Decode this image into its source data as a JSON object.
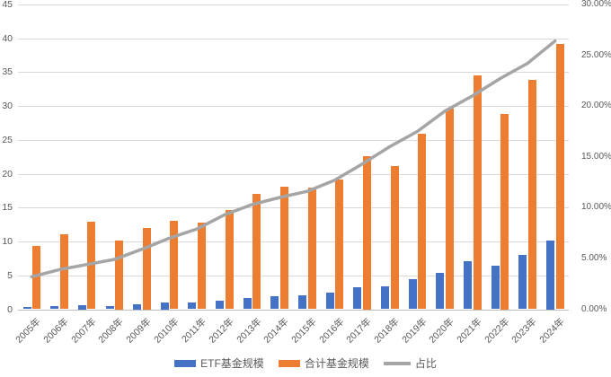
{
  "chart_data": {
    "type": "combo_bar_line",
    "title": "",
    "categories": [
      "2005年",
      "2006年",
      "2007年",
      "2008年",
      "2009年",
      "2010年",
      "2011年",
      "2012年",
      "2013年",
      "2014年",
      "2015年",
      "2016年",
      "2017年",
      "2018年",
      "2019年",
      "2020年",
      "2021年",
      "2022年",
      "2023年",
      "2024年"
    ],
    "series": [
      {
        "name": "ETF基金规模",
        "type": "bar",
        "axis": "left",
        "color": "#4472C4",
        "values": [
          0.3,
          0.45,
          0.6,
          0.5,
          0.8,
          1.0,
          1.05,
          1.3,
          1.7,
          1.9,
          2.1,
          2.5,
          3.3,
          3.4,
          4.4,
          5.4,
          7.1,
          6.4,
          8.0,
          10.2
        ]
      },
      {
        "name": "合计基金规模",
        "type": "bar",
        "axis": "left",
        "color": "#ED7D31",
        "values": [
          9.4,
          11.1,
          12.9,
          10.2,
          12.0,
          13.1,
          12.8,
          14.7,
          17.0,
          18.1,
          18.0,
          19.2,
          22.6,
          21.2,
          25.9,
          29.6,
          34.6,
          28.9,
          33.9,
          39.2
        ]
      },
      {
        "name": "占比",
        "type": "line",
        "axis": "right",
        "color": "#A5A5A5",
        "values": [
          3.2,
          3.9,
          4.4,
          4.9,
          5.9,
          7.0,
          7.9,
          9.3,
          10.3,
          11.0,
          11.6,
          12.7,
          14.3,
          16.0,
          17.5,
          19.5,
          21.0,
          22.7,
          24.2,
          26.4
        ]
      }
    ],
    "left_axis": {
      "min": 0,
      "max": 45,
      "step": 5,
      "labels": [
        "0",
        "5",
        "10",
        "15",
        "20",
        "25",
        "30",
        "35",
        "40",
        "45"
      ]
    },
    "right_axis": {
      "min": 0,
      "max": 30,
      "step": 5,
      "unit": "%",
      "labels": [
        "0.00%",
        "5.00%",
        "10.00%",
        "15.00%",
        "20.00%",
        "25.00%",
        "30.00%"
      ]
    },
    "grid": true,
    "legend_position": "bottom",
    "colors": {
      "gridline": "#D9D9D9",
      "axis_line": "#BFBFBF",
      "axis_text": "#595959",
      "background": "#FFFFFF"
    }
  }
}
